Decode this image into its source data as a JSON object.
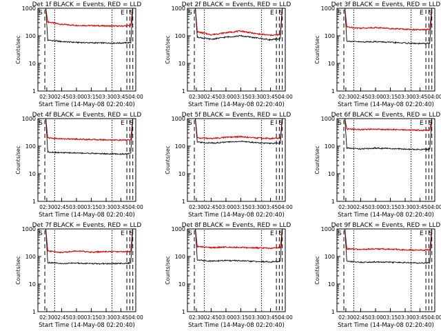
{
  "figure": {
    "xlabel": "Start Time (14-May-08 02:20:40)",
    "ylabel": "Counts/sec"
  },
  "colors": {
    "events": "#000000",
    "lld": "#dd0000",
    "frame": "#000000",
    "background": "#ffffff"
  },
  "chart_data": [
    {
      "type": "line",
      "title": "Det 1f BLACK = Events, RED = LLD",
      "xlabel": "Start Time (14-May-08 02:20:40)",
      "ylabel": "Counts/sec",
      "x_ticks": [
        "02:30",
        "02:45",
        "03:00",
        "03:15",
        "03:30",
        "03:45",
        "04:00"
      ],
      "y_ticks": [
        "1",
        "10",
        "100",
        "1000"
      ],
      "yscale": "log",
      "ylim": [
        1,
        1000
      ],
      "markers": [
        {
          "label": "S",
          "at": "02:21"
        },
        {
          "label": "E",
          "at": "03:48"
        },
        {
          "label": "S",
          "at": "03:57"
        }
      ],
      "series": [
        {
          "name": "LLD",
          "color": "#dd0000",
          "x": [
            "02:31",
            "02:45",
            "03:00",
            "03:15",
            "03:30",
            "03:45",
            "03:55"
          ],
          "values": [
            320,
            260,
            240,
            235,
            230,
            225,
            240
          ]
        },
        {
          "name": "Events",
          "color": "#000000",
          "x": [
            "02:31",
            "02:45",
            "03:00",
            "03:15",
            "03:30",
            "03:45",
            "03:55"
          ],
          "values": [
            70,
            62,
            58,
            56,
            55,
            55,
            57
          ]
        }
      ]
    },
    {
      "type": "line",
      "title": "Det 2f BLACK = Events, RED = LLD",
      "xlabel": "Start Time (14-May-08 02:20:40)",
      "ylabel": "Counts/sec",
      "x_ticks": [
        "02:30",
        "02:45",
        "03:00",
        "03:15",
        "03:30",
        "03:45",
        "04:00"
      ],
      "y_ticks": [
        "1",
        "10",
        "100",
        "1000"
      ],
      "yscale": "log",
      "ylim": [
        1,
        1000
      ],
      "markers": [
        {
          "label": "S",
          "at": "02:21"
        },
        {
          "label": "E",
          "at": "03:48"
        },
        {
          "label": "S",
          "at": "03:57"
        }
      ],
      "series": [
        {
          "name": "LLD",
          "color": "#dd0000",
          "x": [
            "02:31",
            "02:45",
            "03:00",
            "03:15",
            "03:30",
            "03:45",
            "03:55"
          ],
          "values": [
            140,
            110,
            130,
            150,
            120,
            105,
            110
          ]
        },
        {
          "name": "Events",
          "color": "#000000",
          "x": [
            "02:31",
            "02:45",
            "03:00",
            "03:15",
            "03:30",
            "03:45",
            "03:55"
          ],
          "values": [
            90,
            75,
            90,
            100,
            85,
            72,
            78
          ]
        }
      ]
    },
    {
      "type": "line",
      "title": "Det 3f BLACK = Events, RED = LLD",
      "xlabel": "Start Time (14-May-08 02:20:40)",
      "ylabel": "Counts/sec",
      "x_ticks": [
        "02:30",
        "02:45",
        "03:00",
        "03:15",
        "03:30",
        "03:45",
        "04:00"
      ],
      "y_ticks": [
        "1",
        "10",
        "100",
        "1000"
      ],
      "yscale": "log",
      "ylim": [
        1,
        1000
      ],
      "markers": [
        {
          "label": "S",
          "at": "02:21"
        },
        {
          "label": "E",
          "at": "03:48"
        },
        {
          "label": "S",
          "at": "03:57"
        }
      ],
      "series": [
        {
          "name": "LLD",
          "color": "#dd0000",
          "x": [
            "02:31",
            "02:45",
            "03:00",
            "03:15",
            "03:30",
            "03:45",
            "03:55"
          ],
          "values": [
            210,
            190,
            200,
            185,
            175,
            165,
            170
          ]
        },
        {
          "name": "Events",
          "color": "#000000",
          "x": [
            "02:31",
            "02:45",
            "03:00",
            "03:15",
            "03:30",
            "03:45",
            "03:55"
          ],
          "values": [
            65,
            60,
            62,
            58,
            55,
            52,
            54
          ]
        }
      ]
    },
    {
      "type": "line",
      "title": "Det 4f BLACK = Events, RED = LLD",
      "xlabel": "Start Time (14-May-08 02:20:40)",
      "ylabel": "Counts/sec",
      "x_ticks": [
        "02:30",
        "02:45",
        "03:00",
        "03:15",
        "03:30",
        "03:45",
        "04:00"
      ],
      "y_ticks": [
        "1",
        "10",
        "100",
        "1000"
      ],
      "yscale": "log",
      "ylim": [
        1,
        1000
      ],
      "markers": [
        {
          "label": "S",
          "at": "02:21"
        },
        {
          "label": "E",
          "at": "03:48"
        },
        {
          "label": "S",
          "at": "03:57"
        }
      ],
      "series": [
        {
          "name": "LLD",
          "color": "#dd0000",
          "x": [
            "02:31",
            "02:45",
            "03:00",
            "03:15",
            "03:30",
            "03:45",
            "03:55"
          ],
          "values": [
            200,
            185,
            180,
            175,
            170,
            165,
            170
          ]
        },
        {
          "name": "Events",
          "color": "#000000",
          "x": [
            "02:31",
            "02:45",
            "03:00",
            "03:15",
            "03:30",
            "03:45",
            "03:55"
          ],
          "values": [
            62,
            58,
            57,
            55,
            53,
            52,
            54
          ]
        }
      ]
    },
    {
      "type": "line",
      "title": "Det 5f BLACK = Events, RED = LLD",
      "xlabel": "Start Time (14-May-08 02:20:40)",
      "ylabel": "Counts/sec",
      "x_ticks": [
        "02:30",
        "02:45",
        "03:00",
        "03:15",
        "03:30",
        "03:45",
        "04:00"
      ],
      "y_ticks": [
        "1",
        "10",
        "100",
        "1000"
      ],
      "yscale": "log",
      "ylim": [
        1,
        1000
      ],
      "markers": [
        {
          "label": "S",
          "at": "02:21"
        },
        {
          "label": "E",
          "at": "03:48"
        },
        {
          "label": "S",
          "at": "03:57"
        }
      ],
      "series": [
        {
          "name": "LLD",
          "color": "#dd0000",
          "x": [
            "02:31",
            "02:45",
            "03:00",
            "03:15",
            "03:30",
            "03:45",
            "03:55"
          ],
          "values": [
            200,
            190,
            210,
            220,
            200,
            190,
            195
          ]
        },
        {
          "name": "Events",
          "color": "#000000",
          "x": [
            "02:31",
            "02:45",
            "03:00",
            "03:15",
            "03:30",
            "03:45",
            "03:55"
          ],
          "values": [
            140,
            130,
            140,
            150,
            135,
            125,
            130
          ]
        }
      ]
    },
    {
      "type": "line",
      "title": "Det 6f BLACK = Events, RED = LLD",
      "xlabel": "Start Time (14-May-08 02:20:40)",
      "ylabel": "Counts/sec",
      "x_ticks": [
        "02:30",
        "02:45",
        "03:00",
        "03:15",
        "03:30",
        "03:45",
        "04:00"
      ],
      "y_ticks": [
        "1",
        "10",
        "100",
        "1000"
      ],
      "yscale": "log",
      "ylim": [
        1,
        1000
      ],
      "markers": [
        {
          "label": "S",
          "at": "02:21"
        },
        {
          "label": "E",
          "at": "03:48"
        },
        {
          "label": "S",
          "at": "03:57"
        }
      ],
      "series": [
        {
          "name": "LLD",
          "color": "#dd0000",
          "x": [
            "02:31",
            "02:45",
            "03:00",
            "03:15",
            "03:30",
            "03:45",
            "03:55"
          ],
          "values": [
            420,
            400,
            410,
            400,
            390,
            380,
            385
          ]
        },
        {
          "name": "Events",
          "color": "#000000",
          "x": [
            "02:31",
            "02:45",
            "03:00",
            "03:15",
            "03:30",
            "03:45",
            "03:55"
          ],
          "values": [
            85,
            80,
            85,
            82,
            78,
            76,
            78
          ]
        }
      ]
    },
    {
      "type": "line",
      "title": "Det 7f BLACK = Events, RED = LLD",
      "xlabel": "Start Time (14-May-08 02:20:40)",
      "ylabel": "Counts/sec",
      "x_ticks": [
        "02:30",
        "02:45",
        "03:00",
        "03:15",
        "03:30",
        "03:45",
        "04:00"
      ],
      "y_ticks": [
        "1",
        "10",
        "100",
        "1000"
      ],
      "yscale": "log",
      "ylim": [
        1,
        1000
      ],
      "markers": [
        {
          "label": "S",
          "at": "02:21"
        },
        {
          "label": "E",
          "at": "03:48"
        },
        {
          "label": "S",
          "at": "03:57"
        }
      ],
      "series": [
        {
          "name": "LLD",
          "color": "#dd0000",
          "x": [
            "02:31",
            "02:45",
            "03:00",
            "03:15",
            "03:30",
            "03:45",
            "03:55"
          ],
          "values": [
            160,
            140,
            160,
            145,
            150,
            150,
            155
          ]
        },
        {
          "name": "Events",
          "color": "#000000",
          "x": [
            "02:31",
            "02:45",
            "03:00",
            "03:15",
            "03:30",
            "03:45",
            "03:55"
          ],
          "values": [
            60,
            55,
            58,
            55,
            55,
            56,
            58
          ]
        }
      ]
    },
    {
      "type": "line",
      "title": "Det 8f BLACK = Events, RED = LLD",
      "xlabel": "Start Time (14-May-08 02:20:40)",
      "ylabel": "Counts/sec",
      "x_ticks": [
        "02:30",
        "02:45",
        "03:00",
        "03:15",
        "03:30",
        "03:45",
        "04:00"
      ],
      "y_ticks": [
        "1",
        "10",
        "100",
        "1000"
      ],
      "yscale": "log",
      "ylim": [
        1,
        1000
      ],
      "markers": [
        {
          "label": "S",
          "at": "02:21"
        },
        {
          "label": "E",
          "at": "03:48"
        },
        {
          "label": "S",
          "at": "03:57"
        }
      ],
      "series": [
        {
          "name": "LLD",
          "color": "#dd0000",
          "x": [
            "02:31",
            "02:45",
            "03:00",
            "03:15",
            "03:30",
            "03:45",
            "03:55"
          ],
          "values": [
            230,
            210,
            220,
            215,
            205,
            200,
            210
          ]
        },
        {
          "name": "Events",
          "color": "#000000",
          "x": [
            "02:31",
            "02:45",
            "03:00",
            "03:15",
            "03:30",
            "03:45",
            "03:55"
          ],
          "values": [
            75,
            68,
            72,
            70,
            66,
            64,
            66
          ]
        }
      ]
    },
    {
      "type": "line",
      "title": "Det 9f BLACK = Events, RED = LLD",
      "xlabel": "Start Time (14-May-08 02:20:40)",
      "ylabel": "Counts/sec",
      "x_ticks": [
        "02:30",
        "02:45",
        "03:00",
        "03:15",
        "03:30",
        "03:45",
        "04:00"
      ],
      "y_ticks": [
        "1",
        "10",
        "100",
        "1000"
      ],
      "yscale": "log",
      "ylim": [
        1,
        1000
      ],
      "markers": [
        {
          "label": "S",
          "at": "02:21"
        },
        {
          "label": "E",
          "at": "03:48"
        },
        {
          "label": "S",
          "at": "03:57"
        }
      ],
      "series": [
        {
          "name": "LLD",
          "color": "#dd0000",
          "x": [
            "02:31",
            "02:45",
            "03:00",
            "03:15",
            "03:30",
            "03:45",
            "03:55"
          ],
          "values": [
            190,
            180,
            190,
            185,
            175,
            170,
            175
          ]
        },
        {
          "name": "Events",
          "color": "#000000",
          "x": [
            "02:31",
            "02:45",
            "03:00",
            "03:15",
            "03:30",
            "03:45",
            "03:55"
          ],
          "values": [
            68,
            62,
            64,
            62,
            60,
            58,
            60
          ]
        }
      ]
    }
  ]
}
